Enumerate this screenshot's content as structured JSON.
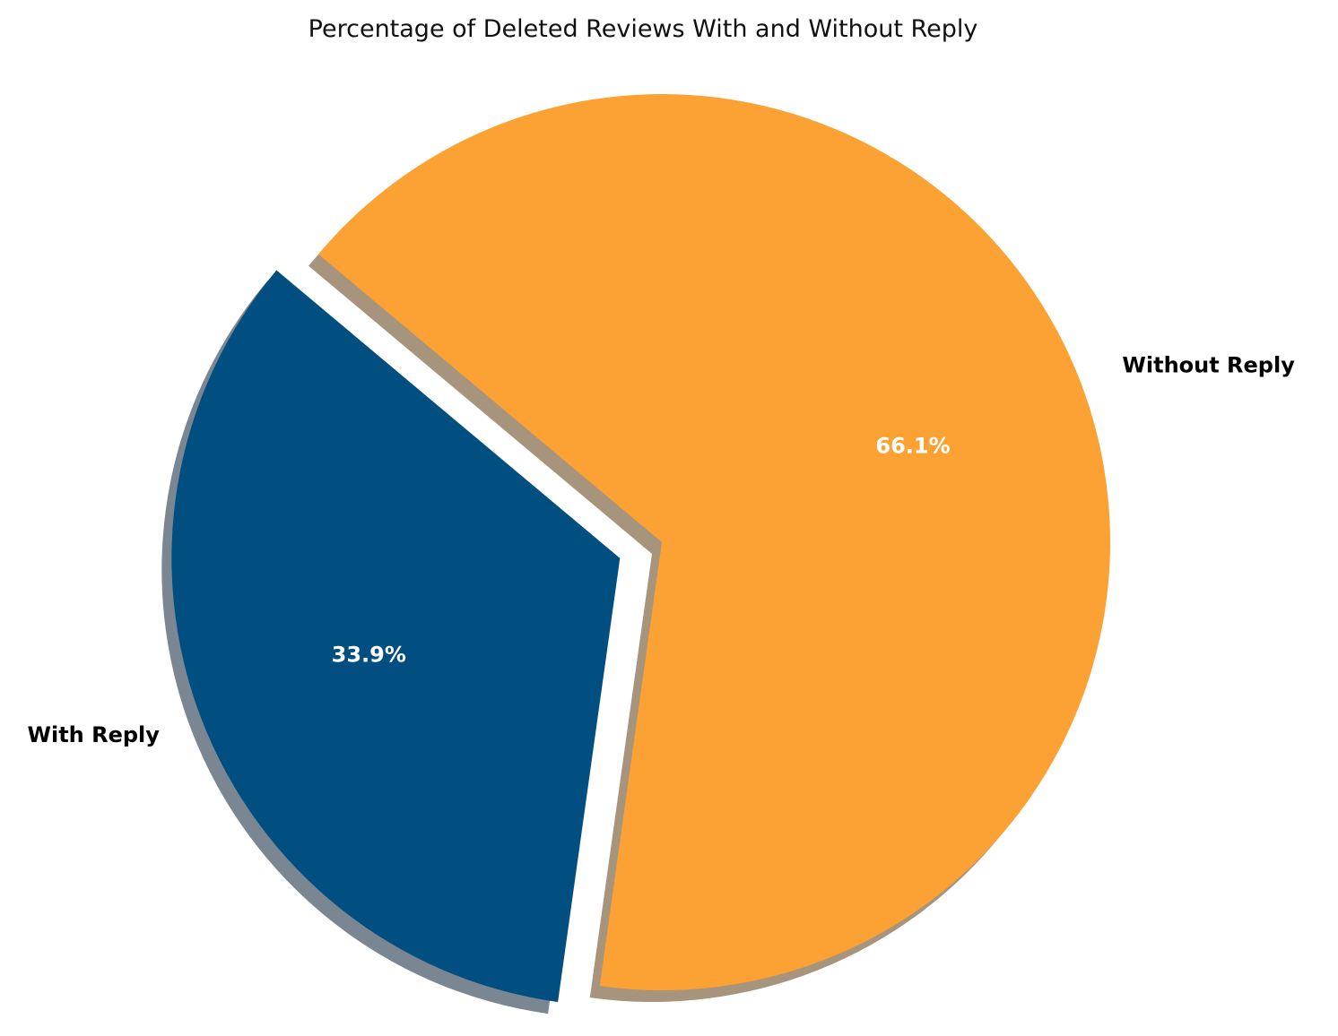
{
  "chart_data": {
    "type": "pie",
    "title": "Percentage of Deleted Reviews With and Without Reply",
    "categories": [
      "With Reply",
      "Without Reply"
    ],
    "values": [
      33.9,
      66.1
    ],
    "value_labels": [
      "33.9%",
      "66.1%"
    ],
    "colors": [
      "#004f80",
      "#fca234"
    ],
    "shadow_colors": [
      "#7a8792",
      "#a6947c"
    ],
    "explode": [
      0.1,
      0
    ],
    "start_angle_deg": 140,
    "shadow": true,
    "legend": "none"
  }
}
